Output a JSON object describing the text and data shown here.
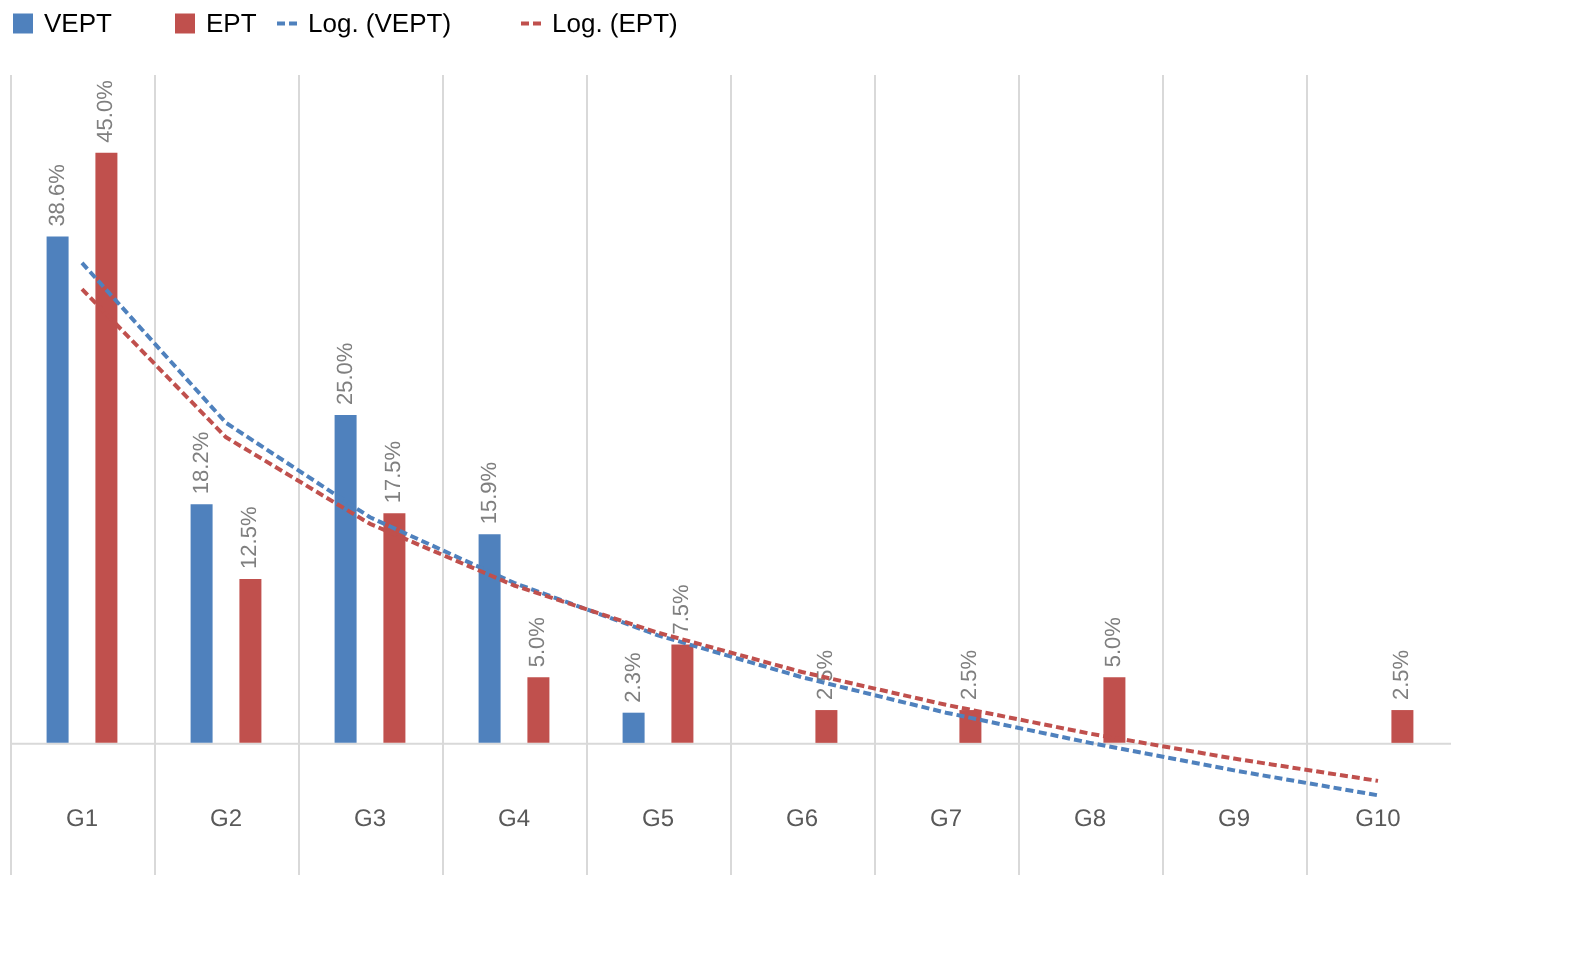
{
  "chart_data": {
    "type": "bar",
    "categories": [
      "G1",
      "G2",
      "G3",
      "G4",
      "G5",
      "G6",
      "G7",
      "G8",
      "G9",
      "G10"
    ],
    "series": [
      {
        "name": "VEPT",
        "color": "#4f81bd",
        "values": [
          38.6,
          18.2,
          25.0,
          15.9,
          2.3,
          0,
          0,
          0,
          0,
          0
        ],
        "value_labels": [
          "38.6%",
          "18.2%",
          "25.0%",
          "15.9%",
          "2.3%",
          null,
          null,
          null,
          null,
          null
        ]
      },
      {
        "name": "EPT",
        "color": "#c0504d",
        "values": [
          45.0,
          12.5,
          17.5,
          5.0,
          7.5,
          2.5,
          2.5,
          5.0,
          0,
          2.5
        ],
        "value_labels": [
          "45.0%",
          "12.5%",
          "17.5%",
          "5.0%",
          "7.5%",
          "2.5%",
          "2.5%",
          "5.0%",
          null,
          "2.5%"
        ]
      },
      {
        "name": "Log. (VEPT)",
        "type": "line",
        "line_style": "dashed",
        "color": "#4f81bd",
        "values": [
          36.6,
          24.4,
          17.2,
          12.2,
          8.2,
          5.0,
          2.3,
          0.0,
          -2.1,
          -4.0
        ]
      },
      {
        "name": "Log. (EPT)",
        "type": "line",
        "line_style": "dashed",
        "color": "#c0504d",
        "values": [
          34.6,
          23.3,
          16.7,
          12.0,
          8.4,
          5.4,
          2.9,
          0.7,
          -1.2,
          -2.9
        ]
      }
    ],
    "ylim": [
      -10,
      51
    ],
    "grid": "x",
    "legend": "top",
    "tick_labels": "x"
  }
}
